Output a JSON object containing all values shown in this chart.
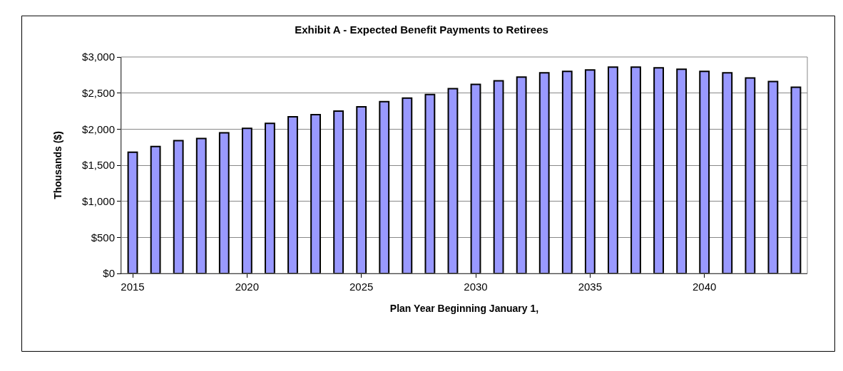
{
  "chart_data": {
    "type": "bar",
    "title": "Exhibit A - Expected Benefit Payments to Retirees",
    "xlabel": "Plan Year Beginning January 1,",
    "ylabel": "Thousands ($)",
    "x": [
      2015,
      2016,
      2017,
      2018,
      2019,
      2020,
      2021,
      2022,
      2023,
      2024,
      2025,
      2026,
      2027,
      2028,
      2029,
      2030,
      2031,
      2032,
      2033,
      2034,
      2035,
      2036,
      2037,
      2038,
      2039,
      2040,
      2041,
      2042,
      2043,
      2044
    ],
    "values": [
      1680,
      1760,
      1840,
      1870,
      1950,
      2010,
      2080,
      2170,
      2200,
      2250,
      2310,
      2380,
      2430,
      2480,
      2560,
      2620,
      2670,
      2720,
      2780,
      2800,
      2820,
      2860,
      2860,
      2850,
      2830,
      2800,
      2780,
      2710,
      2660,
      2580
    ],
    "color": "#9999ff",
    "xlim": [
      2014.5,
      2044.5
    ],
    "xticks": [
      2015,
      2020,
      2025,
      2030,
      2035,
      2040
    ],
    "ylim": [
      0,
      3000
    ],
    "yticks": [
      {
        "value": 0,
        "label": "$0"
      },
      {
        "value": 500,
        "label": "$500"
      },
      {
        "value": 1000,
        "label": "$1,000"
      },
      {
        "value": 1500,
        "label": "$1,500"
      },
      {
        "value": 2000,
        "label": "$2,000"
      },
      {
        "value": 2500,
        "label": "$2,500"
      },
      {
        "value": 3000,
        "label": "$3,000"
      }
    ],
    "grid": "y"
  }
}
